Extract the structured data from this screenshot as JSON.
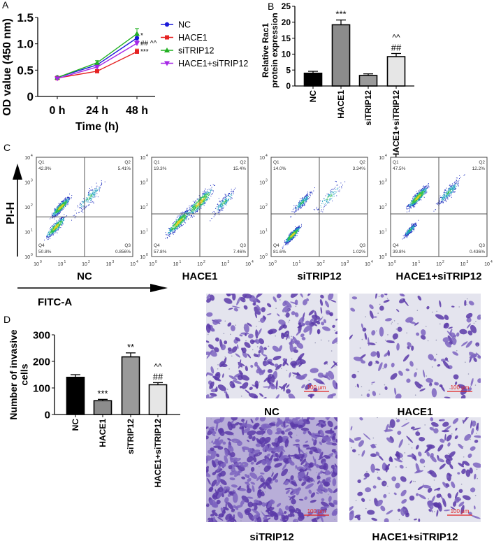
{
  "panel_labels": [
    "A",
    "B",
    "C",
    "D"
  ],
  "chart_data": [
    {
      "panel": "A",
      "type": "line",
      "xlabel": "Time (h)",
      "ylabel": "OD value (450 nm)",
      "categories": [
        "0 h",
        "24 h",
        "48 h"
      ],
      "ylim": [
        0,
        1.5
      ],
      "yticks": [
        "0",
        "0.5",
        "1.0",
        "1.5"
      ],
      "legend_position": "right",
      "series": [
        {
          "name": "NC",
          "color": "#1a1ad8",
          "marker": "circle",
          "values": [
            0.36,
            0.6,
            1.11
          ],
          "errors": [
            0.01,
            0.03,
            0.07
          ]
        },
        {
          "name": "HACE1",
          "color": "#e52222",
          "marker": "square",
          "values": [
            0.35,
            0.48,
            0.85
          ],
          "errors": [
            0.01,
            0.02,
            0.05
          ]
        },
        {
          "name": "siTRIP12",
          "color": "#22b022",
          "marker": "triangle-up",
          "values": [
            0.36,
            0.64,
            1.19
          ],
          "errors": [
            0.01,
            0.04,
            0.1
          ]
        },
        {
          "name": "HACE1+siTRIP12",
          "color": "#a526e6",
          "marker": "triangle-down",
          "values": [
            0.34,
            0.56,
            1.01
          ],
          "errors": [
            0.01,
            0.03,
            0.05
          ]
        }
      ],
      "annotations": [
        {
          "text": "*",
          "y": 1.17
        },
        {
          "text": "## ^^",
          "y": 1.02
        },
        {
          "text": "***",
          "y": 0.86
        }
      ]
    },
    {
      "panel": "B",
      "type": "bar",
      "ylabel_lines": [
        "Relative Rac1",
        "protein expression"
      ],
      "categories": [
        "NC",
        "HACE1",
        "siTRIP12",
        "HACE1+siTRIP12"
      ],
      "values": [
        4.0,
        19.2,
        3.3,
        9.2
      ],
      "errors": [
        0.6,
        1.5,
        0.5,
        1.0
      ],
      "colors": [
        "#000000",
        "#8c8c8c",
        "#9a9a9a",
        "#e6e6e6"
      ],
      "ylim": [
        0,
        25
      ],
      "yticks": [
        "0",
        "5",
        "10",
        "15",
        "20",
        "25"
      ],
      "annotations": [
        [
          "",
          ""
        ],
        [
          "***",
          ""
        ],
        [
          "",
          ""
        ],
        [
          "##",
          "^^"
        ]
      ]
    },
    {
      "panel": "C",
      "type": "scatter",
      "xlabel": "FITC-A",
      "ylabel": "PI-H",
      "log_scale": true,
      "ticks": [
        "0",
        "1",
        "2",
        "3",
        "4"
      ],
      "plots": [
        {
          "name": "NC",
          "Q1": "42.9%",
          "Q2": "5.41%",
          "Q3": "0.856%",
          "Q4": "50.8%"
        },
        {
          "name": "HACE1",
          "Q1": "19.3%",
          "Q2": "15.4%",
          "Q3": "7.46%",
          "Q4": "57.8%"
        },
        {
          "name": "siTRIP12",
          "Q1": "14.0%",
          "Q2": "3.34%",
          "Q3": "1.02%",
          "Q4": "81.6%"
        },
        {
          "name": "HACE1+siTRIP12",
          "Q1": "47.5%",
          "Q2": "12.2%",
          "Q3": "0.436%",
          "Q4": "39.8%"
        }
      ],
      "quadrant_labels": [
        "Q1",
        "Q2",
        "Q3",
        "Q4"
      ]
    },
    {
      "panel": "D",
      "type": "bar",
      "ylabel_lines": [
        "Number of invasive",
        "cells"
      ],
      "categories": [
        "NC",
        "HACE1",
        "siTRIP12",
        "HACE1+siTRIP12"
      ],
      "values": [
        140,
        52,
        217,
        112
      ],
      "errors": [
        10,
        5,
        15,
        8
      ],
      "colors": [
        "#000000",
        "#8c8c8c",
        "#9a9a9a",
        "#e6e6e6"
      ],
      "ylim": [
        0,
        300
      ],
      "yticks": [
        "0",
        "100",
        "200",
        "300"
      ],
      "annotations": [
        [
          "",
          ""
        ],
        [
          "***",
          ""
        ],
        [
          "**",
          ""
        ],
        [
          "##",
          "^^"
        ]
      ]
    }
  ],
  "micrographs": {
    "scale_bar": "100 μm",
    "images": [
      "NC",
      "HACE1",
      "siTRIP12",
      "HACE1+siTRIP12"
    ],
    "densities": [
      0.55,
      0.25,
      1.0,
      0.35
    ]
  }
}
